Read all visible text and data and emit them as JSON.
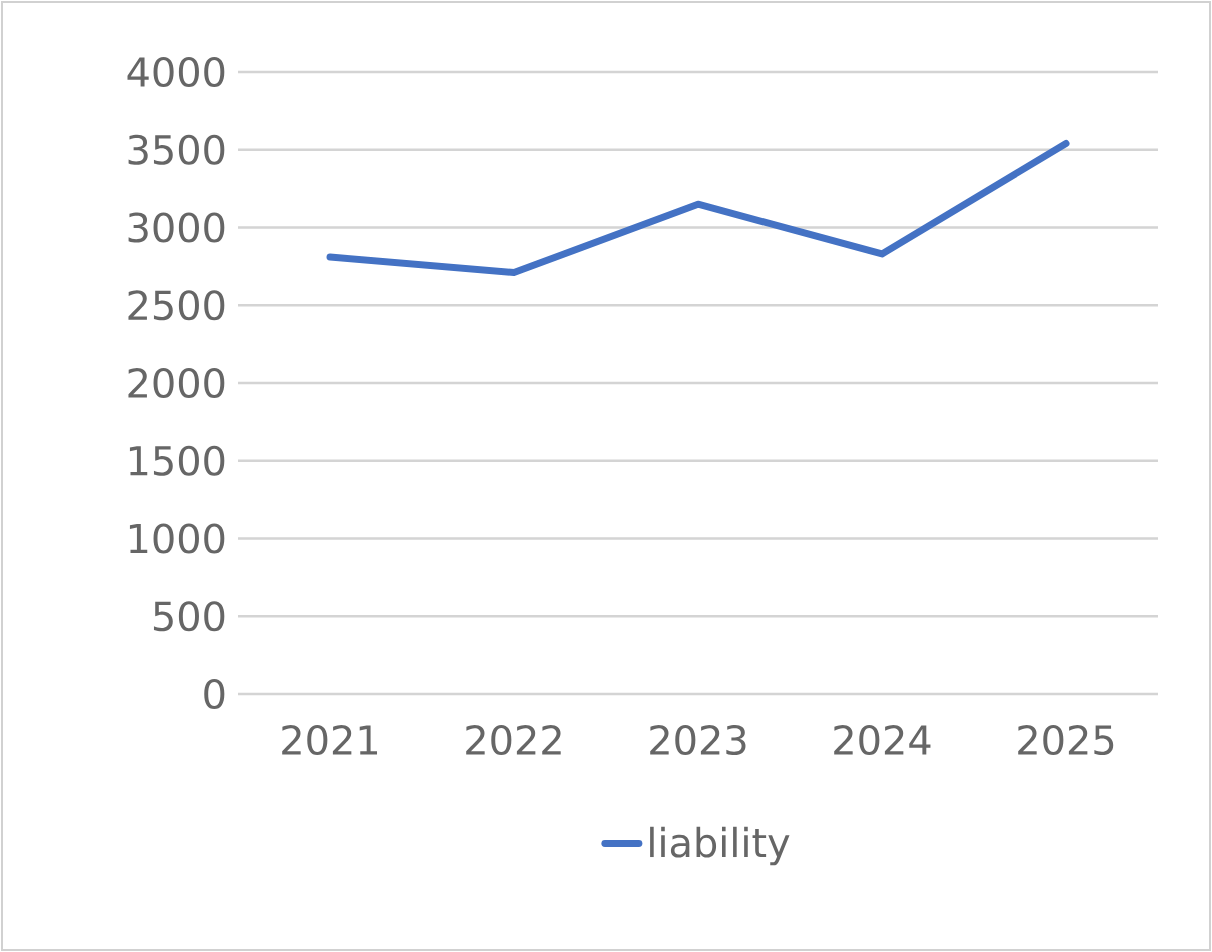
{
  "chart_data": {
    "type": "line",
    "categories": [
      "2021",
      "2022",
      "2023",
      "2024",
      "2025"
    ],
    "series": [
      {
        "name": "liability",
        "color": "#4472c4",
        "values": [
          2810,
          2710,
          3150,
          2830,
          3540
        ]
      }
    ],
    "ylim": [
      0,
      4000
    ],
    "yticks": [
      0,
      500,
      1000,
      1500,
      2000,
      2500,
      3000,
      3500,
      4000
    ],
    "grid": "y",
    "legend": "bottom",
    "marker": "none",
    "line_style": "solid"
  }
}
